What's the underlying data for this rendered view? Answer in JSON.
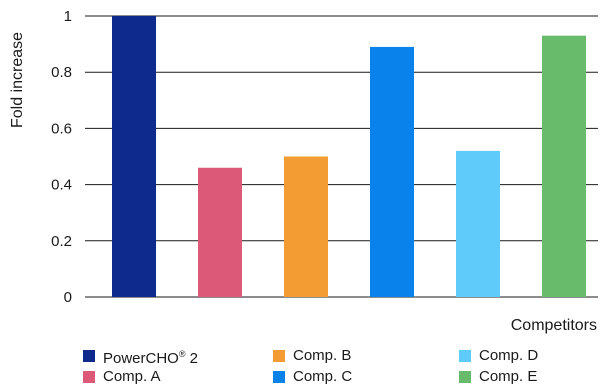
{
  "chart_data": {
    "type": "bar",
    "categories": [
      "PowerCHO® 2",
      "Comp. A",
      "Comp. B",
      "Comp. C",
      "Comp. D",
      "Comp. E"
    ],
    "values": [
      1.0,
      0.46,
      0.5,
      0.89,
      0.52,
      0.93
    ],
    "colors": [
      "#0d2a8c",
      "#dc5a78",
      "#f39c33",
      "#0a82ec",
      "#5fcbfb",
      "#67bb6a"
    ],
    "ylabel": "Fold increase",
    "xlabel": "Competitors",
    "ylim": [
      0,
      1
    ],
    "yticks": [
      "0",
      "0.2",
      "0.4",
      "0.6",
      "0.8",
      "1"
    ],
    "grid": true,
    "legend_position": "bottom"
  },
  "legend": {
    "items": [
      {
        "label": "PowerCHO® 2",
        "color": "#0d2a8c"
      },
      {
        "label": "Comp. A",
        "color": "#dc5a78"
      },
      {
        "label": "Comp. B",
        "color": "#f39c33"
      },
      {
        "label": "Comp. C",
        "color": "#0a82ec"
      },
      {
        "label": "Comp. D",
        "color": "#5fcbfb"
      },
      {
        "label": "Comp. E",
        "color": "#67bb6a"
      }
    ]
  }
}
